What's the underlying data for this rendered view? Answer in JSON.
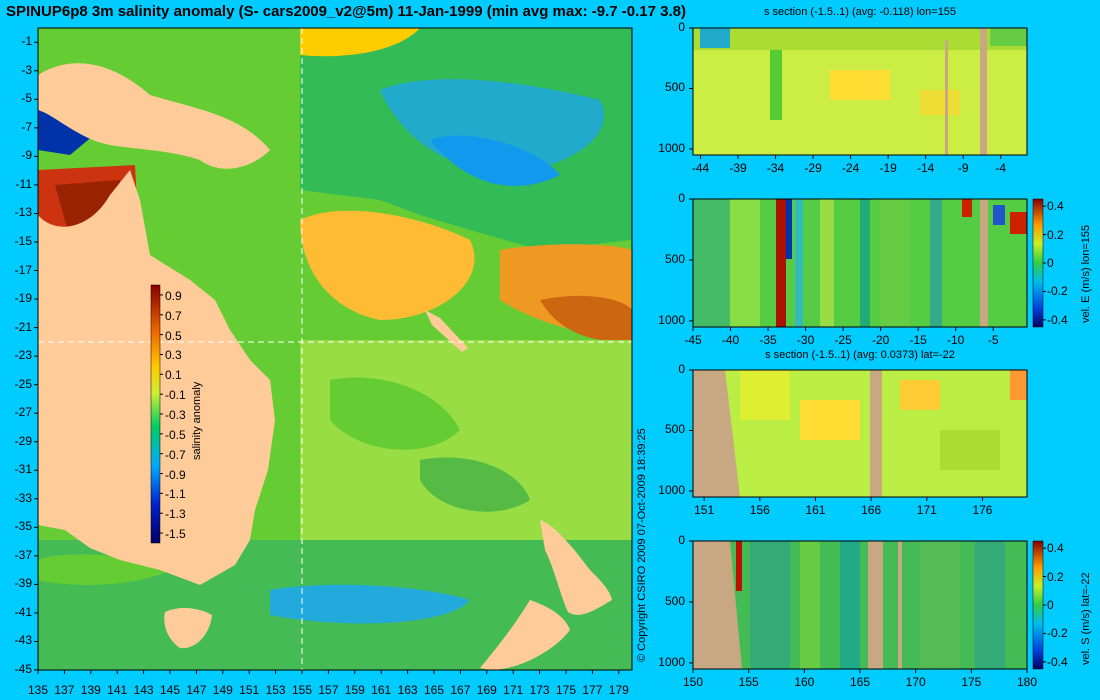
{
  "title": "SPINUP6p8 3m salinity anomaly (S- cars2009_v2@5m) 11-Jan-1999 (min avg max: -9.7 -0.17 3.8)",
  "copyright": "© Copyright CSIRO 2009   07-Oct-2009 18:39:25",
  "colors": {
    "background": "#00ccff",
    "land": "#ffcc99",
    "section_land": "#c8a882",
    "crosshair": "#ffffff"
  },
  "chart_data": [
    {
      "type": "heatmap",
      "panel": "map",
      "title": "SPINUP6p8 3m salinity anomaly (S- cars2009_v2@5m) 11-Jan-1999 (min avg max: -9.7 -0.17 3.8)",
      "x_ticks": [
        "135",
        "137",
        "139",
        "141",
        "143",
        "145",
        "147",
        "149",
        "151",
        "153",
        "155",
        "157",
        "159",
        "161",
        "163",
        "165",
        "167",
        "169",
        "171",
        "173",
        "175",
        "177",
        "179"
      ],
      "y_ticks": [
        "-1",
        "-3",
        "-5",
        "-7",
        "-9",
        "-11",
        "-13",
        "-15",
        "-17",
        "-19",
        "-21",
        "-23",
        "-25",
        "-27",
        "-29",
        "-31",
        "-33",
        "-35",
        "-37",
        "-39",
        "-41",
        "-43",
        "-45"
      ],
      "xlim": [
        135,
        180
      ],
      "ylim": [
        -45,
        0
      ],
      "crosshair": {
        "lon": 155,
        "lat": -22
      },
      "colorbar": {
        "label": "salinity anomaly",
        "ticks": [
          "0.9",
          "0.7",
          "0.5",
          "0.3",
          "0.1",
          "-0.1",
          "-0.3",
          "-0.5",
          "-0.7",
          "-0.9",
          "-1.1",
          "-1.3",
          "-1.5"
        ],
        "range": [
          -1.6,
          1.0
        ]
      }
    },
    {
      "type": "heatmap",
      "panel": "section-1",
      "title": "s section (-1.5..1) (avg: -0.118) lon=155",
      "x_ticks": [
        "-44",
        "-39",
        "-34",
        "-29",
        "-24",
        "-19",
        "-14",
        "-9",
        "-4"
      ],
      "y_ticks": [
        "0",
        "500",
        "1000"
      ],
      "xlim": [
        -45,
        -0.5
      ],
      "ylim": [
        1050,
        0
      ]
    },
    {
      "type": "heatmap",
      "panel": "section-2",
      "title": "",
      "x_ticks": [
        "-45",
        "-40",
        "-35",
        "-30",
        "-25",
        "-20",
        "-15",
        "-10",
        "-5"
      ],
      "y_ticks": [
        "0",
        "500",
        "1000"
      ],
      "xlim": [
        -45,
        -0.5
      ],
      "ylim": [
        1050,
        0
      ],
      "colorbar": {
        "label": "vel. E (m/s) lon=155",
        "ticks": [
          "0.4",
          "0.2",
          "0",
          "-0.2",
          "-0.4"
        ],
        "range": [
          -0.45,
          0.45
        ]
      }
    },
    {
      "type": "heatmap",
      "panel": "section-3",
      "title": "s section (-1.5..1) (avg: 0.0373) lat=-22",
      "x_ticks": [
        "151",
        "156",
        "161",
        "166",
        "171",
        "176"
      ],
      "y_ticks": [
        "0",
        "500",
        "1000"
      ],
      "xlim": [
        150,
        180
      ],
      "ylim": [
        1050,
        0
      ]
    },
    {
      "type": "heatmap",
      "panel": "section-4",
      "title": "",
      "x_ticks": [
        "150",
        "155",
        "160",
        "165",
        "170",
        "175",
        "180"
      ],
      "y_ticks": [
        "0",
        "500",
        "1000"
      ],
      "xlim": [
        150,
        180
      ],
      "ylim": [
        1050,
        0
      ],
      "colorbar": {
        "label": "vel. S (m/s) lat=-22",
        "ticks": [
          "0.4",
          "0.2",
          "0",
          "-0.2",
          "-0.4"
        ],
        "range": [
          -0.45,
          0.45
        ]
      }
    }
  ]
}
